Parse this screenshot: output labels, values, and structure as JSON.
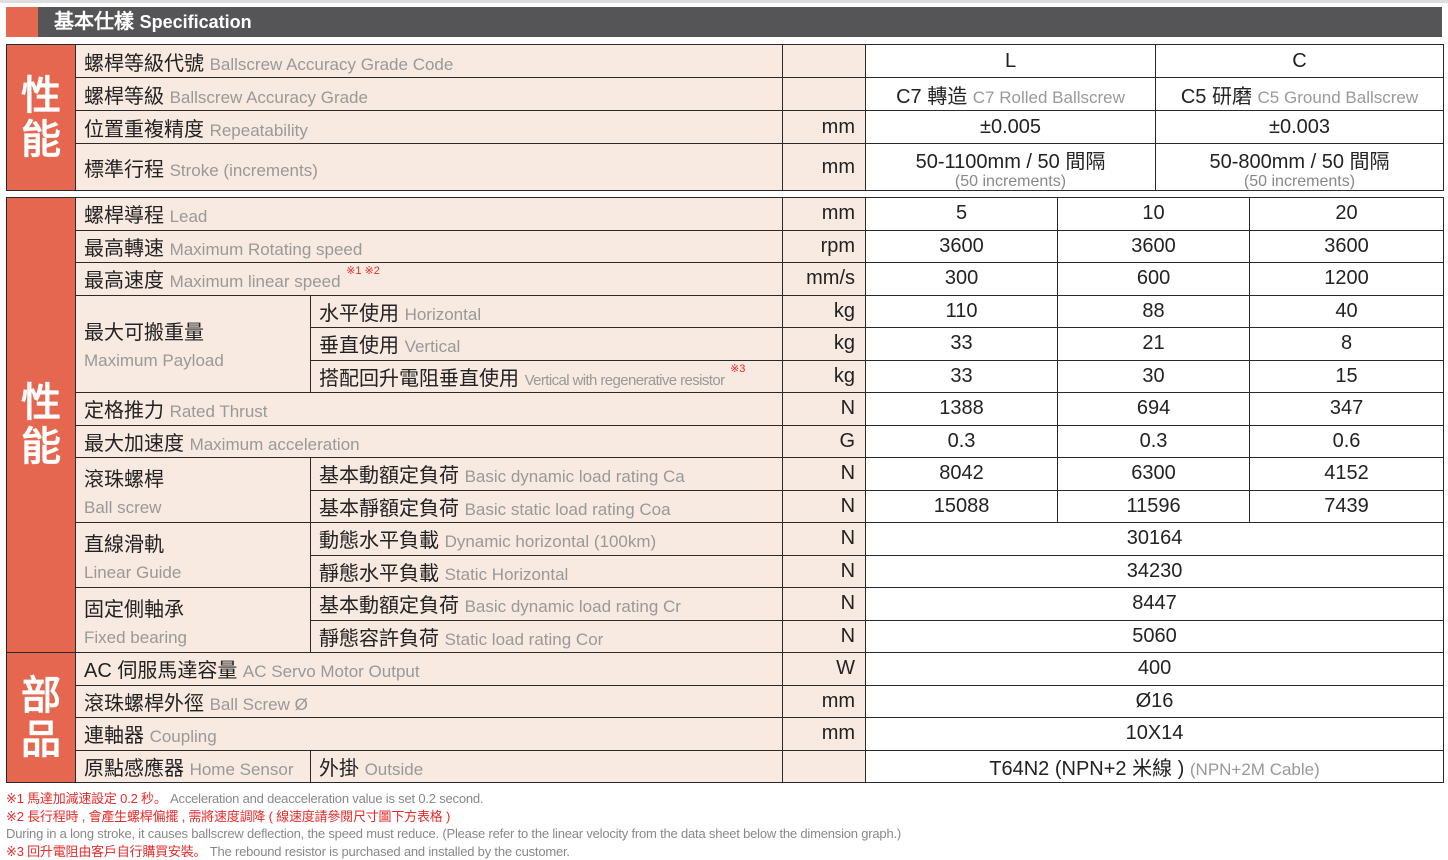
{
  "header": {
    "title_zh": "基本仕樣",
    "title_en": "Specification"
  },
  "section1": {
    "side": "性能",
    "rows": [
      {
        "zh": "螺桿等級代號",
        "en": "Ballscrew Accuracy Grade Code",
        "unit": "",
        "values": [
          "L",
          "C"
        ]
      },
      {
        "zh": "螺桿等級",
        "en": "Ballscrew Accuracy Grade",
        "unit": "",
        "values": [
          {
            "zh": "C7 轉造",
            "en": "C7 Rolled Ballscrew"
          },
          {
            "zh": "C5 研磨",
            "en": "C5 Ground Ballscrew"
          }
        ]
      },
      {
        "zh": "位置重複精度",
        "en": "Repeatability",
        "unit": "mm",
        "values": [
          "±0.005",
          "±0.003"
        ]
      },
      {
        "zh": "標準行程",
        "en": "Stroke (increments)",
        "unit": "mm",
        "values": [
          {
            "main": "50-1100mm / 50 間隔",
            "sub": "(50 increments)"
          },
          {
            "main": "50-800mm / 50 間隔",
            "sub": "(50 increments)"
          }
        ]
      }
    ]
  },
  "section2": {
    "side_perf": "性能",
    "side_parts": "部品",
    "lead": {
      "zh": "螺桿導程",
      "en": "Lead",
      "unit": "mm",
      "values": [
        "5",
        "10",
        "20"
      ]
    },
    "rpm": {
      "zh": "最高轉速",
      "en": "Maximum Rotating speed",
      "unit": "rpm",
      "values": [
        "3600",
        "3600",
        "3600"
      ]
    },
    "speed": {
      "zh": "最高速度",
      "en": "Maximum linear speed",
      "note": "※1 ※2",
      "unit": "mm/s",
      "values": [
        "300",
        "600",
        "1200"
      ]
    },
    "payload": {
      "zh": "最大可搬重量",
      "en": "Maximum Payload",
      "rows": [
        {
          "zh": "水平使用",
          "en": "Horizontal",
          "unit": "kg",
          "values": [
            "110",
            "88",
            "40"
          ]
        },
        {
          "zh": "垂直使用",
          "en": "Vertical",
          "unit": "kg",
          "values": [
            "33",
            "21",
            "8"
          ]
        },
        {
          "zh": "搭配回升電阻垂直使用",
          "en": "Vertical with regenerative resistor",
          "note": "※3",
          "unit": "kg",
          "values": [
            "33",
            "30",
            "15"
          ]
        }
      ]
    },
    "thrust": {
      "zh": "定格推力",
      "en": "Rated Thrust",
      "unit": "N",
      "values": [
        "1388",
        "694",
        "347"
      ]
    },
    "accel": {
      "zh": "最大加速度",
      "en": "Maximum acceleration",
      "unit": "G",
      "values": [
        "0.3",
        "0.3",
        "0.6"
      ]
    },
    "ballscrew": {
      "zh": "滾珠螺桿",
      "en": "Ball screw",
      "rows": [
        {
          "zh": "基本動額定負荷",
          "en": "Basic dynamic load rating Ca",
          "unit": "N",
          "values": [
            "8042",
            "6300",
            "4152"
          ]
        },
        {
          "zh": "基本靜額定負荷",
          "en": "Basic static load rating Coa",
          "unit": "N",
          "values": [
            "15088",
            "11596",
            "7439"
          ]
        }
      ]
    },
    "guide": {
      "zh": "直線滑軌",
      "en": "Linear Guide",
      "rows": [
        {
          "zh": "動態水平負載",
          "en": "Dynamic horizontal (100km)",
          "unit": "N",
          "value": "30164"
        },
        {
          "zh": "靜態水平負載",
          "en": "Static Horizontal",
          "unit": "N",
          "value": "34230"
        }
      ]
    },
    "bearing": {
      "zh": "固定側軸承",
      "en": "Fixed bearing",
      "rows": [
        {
          "zh": "基本動額定負荷",
          "en": "Basic dynamic load rating Cr",
          "unit": "N",
          "value": "8447"
        },
        {
          "zh": "靜態容許負荷",
          "en": "Static load rating Cor",
          "unit": "N",
          "value": "5060"
        }
      ]
    },
    "motor": {
      "zh": "AC 伺服馬達容量",
      "en": "AC Servo Motor Output",
      "unit": "W",
      "value": "400"
    },
    "screwdia": {
      "zh": "滾珠螺桿外徑",
      "en": "Ball Screw Ø",
      "unit": "mm",
      "value": "Ø16"
    },
    "coupling": {
      "zh": "連軸器",
      "en": "Coupling",
      "unit": "mm",
      "value": "10X14"
    },
    "sensor": {
      "zh": "原點感應器",
      "en": "Home Sensor",
      "sub_zh": "外掛",
      "sub_en": "Outside",
      "unit": "",
      "value": "T64N2 (NPN+2 米線 )",
      "value_en": "(NPN+2M Cable)"
    }
  },
  "notes": {
    "n1_zh": "※1 馬達加減速設定 0.2 秒。",
    "n1_en": "Acceleration and deacceleration value is set 0.2 second.",
    "n2_zh": "※2 長行程時 , 會產生螺桿偏擺 , 需將速度調降 ( 線速度請參閱尺寸圖下方表格 )",
    "n2_en": "During in a long stroke, it causes ballscrew deflection, the speed must reduce. (Please refer to the linear velocity from the data sheet below the dimension graph.)",
    "n3_zh": "※3 回升電阻由客戶自行購買安裝。",
    "n3_en": "The rebound resistor is purchased and installed by the customer."
  },
  "colors": {
    "accent": "#e5674f",
    "header_bar": "#555456",
    "cell_bg": "#f8e9e1",
    "note_red": "#e52b2b"
  }
}
